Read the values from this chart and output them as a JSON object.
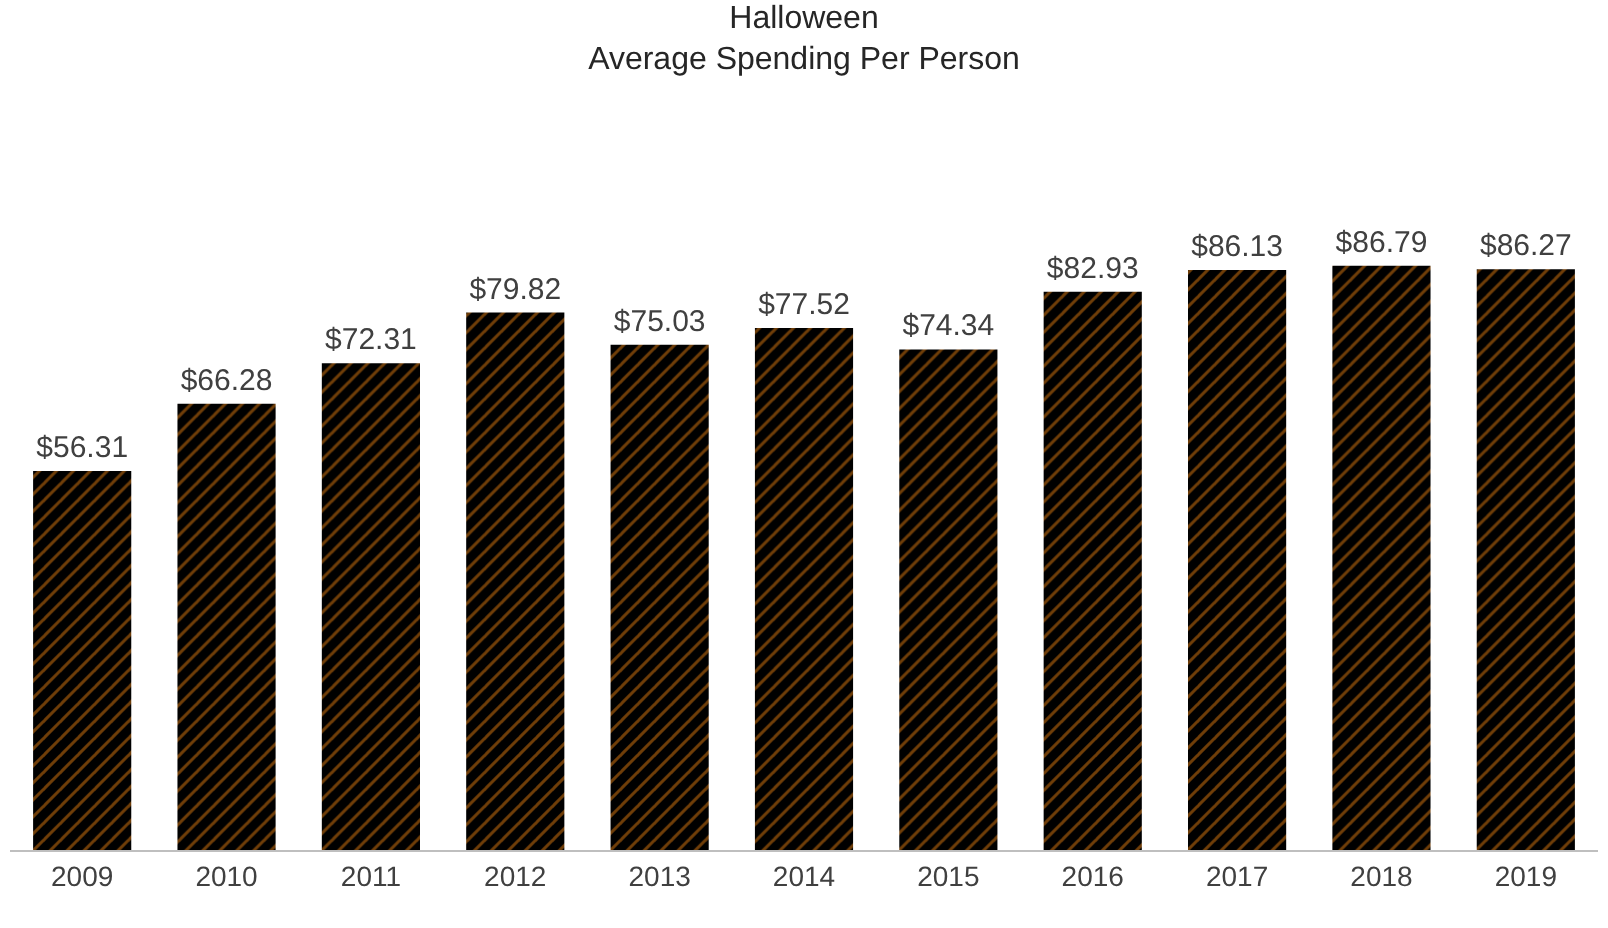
{
  "chart_data": {
    "type": "bar",
    "title": "Halloween",
    "subtitle": "Average Spending Per Person",
    "categories": [
      "2009",
      "2010",
      "2011",
      "2012",
      "2013",
      "2014",
      "2015",
      "2016",
      "2017",
      "2018",
      "2019"
    ],
    "values": [
      56.31,
      66.28,
      72.31,
      79.82,
      75.03,
      77.52,
      74.34,
      82.93,
      86.13,
      86.79,
      86.27
    ],
    "value_labels": [
      "$56.31",
      "$66.28",
      "$72.31",
      "$79.82",
      "$75.03",
      "$77.52",
      "$74.34",
      "$82.93",
      "$86.13",
      "$86.79",
      "$86.27"
    ],
    "color": "#000000",
    "tick_labels": "x"
  }
}
